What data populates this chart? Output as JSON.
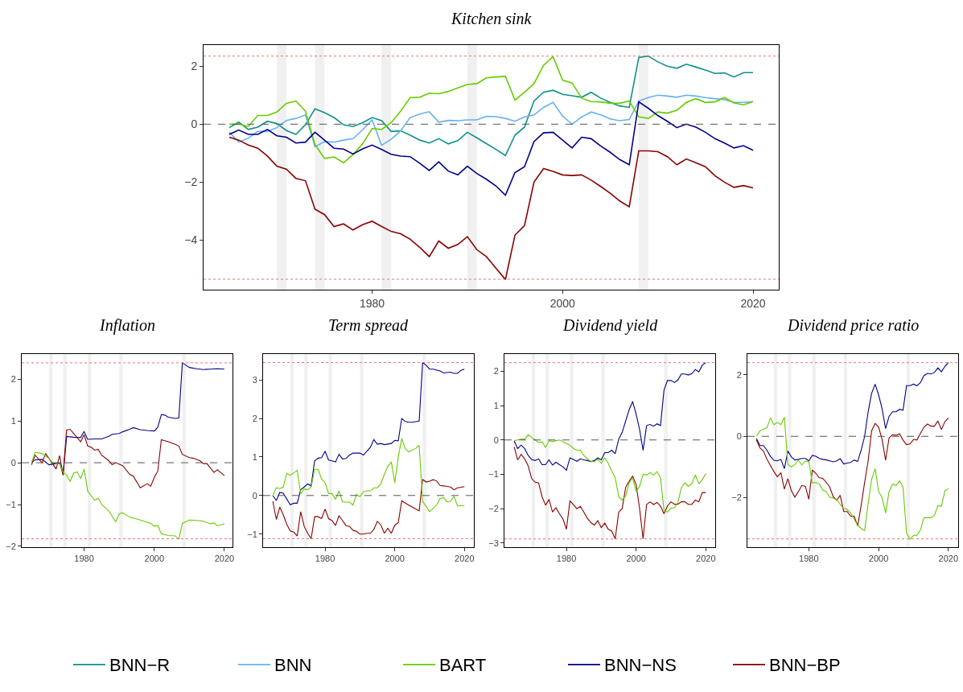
{
  "chart_data": [
    {
      "type": "line",
      "title": "Kitchen sink",
      "legend": "bottom",
      "grid": false,
      "line_style": "solid",
      "xlim": [
        1962.3,
        2022.7
      ],
      "ylim": [
        -5.71,
        2.73
      ],
      "xticks": [
        1980,
        2000,
        2020
      ],
      "yticks": [
        -4,
        -2,
        0,
        2
      ],
      "x": [
        1965,
        1966,
        1967,
        1968,
        1969,
        1970,
        1971,
        1972,
        1973,
        1974,
        1975,
        1976,
        1977,
        1978,
        1979,
        1980,
        1981,
        1982,
        1983,
        1984,
        1985,
        1986,
        1987,
        1988,
        1989,
        1990,
        1991,
        1992,
        1993,
        1994,
        1995,
        1996,
        1997,
        1998,
        1999,
        2000,
        2001,
        2002,
        2003,
        2004,
        2005,
        2006,
        2007,
        2008,
        2009,
        2010,
        2011,
        2012,
        2013,
        2014,
        2015,
        2016,
        2017,
        2018,
        2019,
        2020
      ],
      "series": [
        {
          "name": "BNN−R",
          "color": "#0e918c",
          "values": [
            -0.12,
            0.07,
            -0.18,
            -0.1,
            0.1,
            0.02,
            -0.22,
            -0.35,
            -0.02,
            0.53,
            0.4,
            0.23,
            -0.02,
            -0.08,
            0.05,
            0.23,
            0.12,
            -0.25,
            -0.23,
            -0.38,
            -0.55,
            -0.65,
            -0.5,
            -0.68,
            -0.57,
            -0.28,
            -0.47,
            -0.67,
            -0.87,
            -1.08,
            -0.38,
            -0.1,
            0.8,
            1.1,
            1.17,
            1.03,
            0.98,
            0.93,
            1.1,
            0.9,
            0.75,
            0.63,
            0.58,
            2.3,
            2.35,
            2.15,
            2.0,
            1.93,
            2.07,
            1.97,
            1.87,
            1.75,
            1.77,
            1.63,
            1.78,
            1.78
          ]
        },
        {
          "name": "BNN",
          "color": "#65b2ee",
          "values": [
            -0.28,
            -0.62,
            -0.48,
            -0.25,
            -0.25,
            -0.12,
            0.13,
            0.2,
            0.32,
            -0.78,
            -0.6,
            -0.62,
            -0.55,
            -0.5,
            -0.2,
            0.15,
            -0.73,
            -0.52,
            -0.23,
            0.23,
            0.35,
            0.43,
            0.07,
            0.13,
            0.12,
            0.15,
            0.15,
            0.27,
            0.26,
            0.2,
            0.1,
            0.25,
            0.32,
            0.58,
            0.75,
            0.28,
            0.0,
            0.25,
            0.42,
            0.32,
            0.18,
            0.12,
            0.16,
            0.8,
            0.92,
            1.0,
            0.97,
            0.93,
            1.0,
            0.97,
            0.92,
            0.88,
            0.85,
            0.75,
            0.75,
            0.78
          ]
        },
        {
          "name": "BART",
          "color": "#66cc00",
          "values": [
            0.0,
            0.0,
            -0.08,
            0.3,
            0.3,
            0.42,
            0.72,
            0.8,
            0.45,
            -0.7,
            -1.18,
            -1.13,
            -1.33,
            -1.05,
            -0.68,
            -0.15,
            -0.18,
            0.05,
            0.45,
            0.92,
            0.93,
            1.07,
            1.05,
            1.13,
            1.25,
            1.37,
            1.4,
            1.6,
            1.63,
            1.65,
            0.83,
            1.1,
            1.4,
            2.03,
            2.33,
            1.52,
            1.42,
            0.9,
            0.78,
            0.77,
            0.72,
            0.72,
            0.8,
            0.25,
            0.2,
            0.42,
            0.38,
            0.48,
            0.75,
            0.88,
            0.75,
            0.77,
            0.92,
            0.73,
            0.67,
            0.78
          ]
        },
        {
          "name": "BNN−NS",
          "color": "#00008b",
          "values": [
            -0.35,
            -0.2,
            -0.35,
            -0.35,
            -0.18,
            -0.4,
            -0.45,
            -0.65,
            -0.62,
            -0.28,
            -0.55,
            -0.83,
            -0.86,
            -1.03,
            -0.85,
            -0.72,
            -0.87,
            -1.04,
            -1.1,
            -1.12,
            -1.35,
            -1.6,
            -1.3,
            -1.62,
            -1.75,
            -1.45,
            -1.7,
            -1.9,
            -2.13,
            -2.45,
            -1.67,
            -1.47,
            -0.6,
            -0.3,
            -0.28,
            -0.55,
            -0.82,
            -0.45,
            -0.5,
            -0.75,
            -0.97,
            -1.22,
            -1.4,
            0.77,
            0.55,
            0.3,
            0.1,
            -0.12,
            0.0,
            -0.1,
            -0.28,
            -0.5,
            -0.65,
            -0.82,
            -0.74,
            -0.9
          ]
        },
        {
          "name": "BNN−BP",
          "color": "#8b0000",
          "values": [
            -0.45,
            -0.55,
            -0.72,
            -0.83,
            -1.1,
            -1.45,
            -1.55,
            -1.87,
            -1.95,
            -2.93,
            -3.12,
            -3.53,
            -3.44,
            -3.65,
            -3.47,
            -3.35,
            -3.53,
            -3.7,
            -3.78,
            -3.97,
            -4.25,
            -4.57,
            -4.03,
            -4.28,
            -4.15,
            -3.88,
            -4.33,
            -4.57,
            -4.97,
            -5.36,
            -3.83,
            -3.5,
            -2.0,
            -1.53,
            -1.63,
            -1.75,
            -1.77,
            -1.75,
            -1.93,
            -2.15,
            -2.38,
            -2.65,
            -2.85,
            -0.92,
            -0.92,
            -0.95,
            -1.12,
            -1.4,
            -1.2,
            -1.33,
            -1.47,
            -1.78,
            -2.0,
            -2.18,
            -2.12,
            -2.2
          ]
        }
      ],
      "ref_lines": [
        {
          "axis": "y",
          "value": 0,
          "color": "#555555",
          "line_style": "dashed"
        },
        {
          "axis": "y",
          "value": 2.35,
          "color": "#f07070",
          "line_style": "dotted"
        },
        {
          "axis": "y",
          "value": -5.35,
          "color": "#f07070",
          "line_style": "dotted"
        }
      ],
      "bands": [
        {
          "axis": "x",
          "from": 1970,
          "to": 1971,
          "color": "#f0f0f0"
        },
        {
          "axis": "x",
          "from": 1974,
          "to": 1975,
          "color": "#f0f0f0"
        },
        {
          "axis": "x",
          "from": 1981,
          "to": 1982,
          "color": "#f0f0f0"
        },
        {
          "axis": "x",
          "from": 1990,
          "to": 1991,
          "color": "#f0f0f0"
        },
        {
          "axis": "x",
          "from": 2008,
          "to": 2009,
          "color": "#f0f0f0"
        }
      ]
    },
    {
      "type": "line",
      "title": "Inflation",
      "grid": false,
      "line_style": "solid",
      "xlim": [
        1962.2,
        2022.3
      ],
      "ylim": [
        -2.02,
        2.6
      ],
      "xticks": [
        1980,
        2000,
        2020
      ],
      "yticks": [
        -2,
        -1,
        0,
        1,
        2
      ],
      "series": [
        {
          "name": "BNN−NS",
          "color": "#00008b",
          "x": [
            1965,
            1966,
            1968,
            1970,
            1972,
            1973,
            1974,
            1975,
            1977,
            1979,
            1980,
            1981,
            1983,
            1985,
            1987,
            1988,
            1990,
            1991,
            1993,
            1994,
            1996,
            1998,
            2000,
            2001,
            2002,
            2003,
            2004,
            2006,
            2007,
            2008,
            2010,
            2012,
            2014,
            2016,
            2018,
            2020
          ],
          "values": [
            0.0,
            0.07,
            0.08,
            -0.05,
            -0.02,
            0.0,
            -0.28,
            0.63,
            0.61,
            0.6,
            0.75,
            0.56,
            0.57,
            0.57,
            0.63,
            0.68,
            0.7,
            0.74,
            0.8,
            0.84,
            0.79,
            0.77,
            0.76,
            0.85,
            1.15,
            1.14,
            1.09,
            1.06,
            1.07,
            2.39,
            2.28,
            2.25,
            2.23,
            2.24,
            2.25,
            2.24
          ]
        },
        {
          "name": "BNN−BP",
          "color": "#8b0000",
          "x": [
            1965,
            1966,
            1968,
            1969,
            1970,
            1972,
            1973,
            1974,
            1975,
            1976,
            1977,
            1979,
            1980,
            1981,
            1982,
            1983,
            1984,
            1985,
            1987,
            1988,
            1989,
            1991,
            1993,
            1994,
            1996,
            1998,
            1999,
            2000,
            2001,
            2002,
            2004,
            2006,
            2007,
            2008,
            2010,
            2011,
            2013,
            2014,
            2015,
            2017,
            2018,
            2020
          ],
          "values": [
            -0.05,
            0.18,
            0.0,
            0.22,
            0.1,
            -0.15,
            0.17,
            -0.3,
            0.78,
            0.8,
            0.7,
            0.5,
            0.67,
            0.4,
            0.37,
            0.3,
            0.32,
            0.18,
            0.05,
            -0.05,
            0.0,
            -0.07,
            -0.28,
            -0.32,
            -0.6,
            -0.5,
            -0.56,
            -0.35,
            -0.2,
            0.55,
            0.5,
            0.44,
            0.4,
            0.2,
            0.12,
            0.11,
            0.05,
            -0.02,
            -0.02,
            -0.23,
            -0.17,
            -0.31
          ]
        },
        {
          "name": "BART",
          "color": "#66cc00",
          "x": [
            1965,
            1966,
            1968,
            1970,
            1971,
            1973,
            1974,
            1975,
            1976,
            1977,
            1978,
            1979,
            1980,
            1981,
            1983,
            1984,
            1985,
            1987,
            1989,
            1990,
            1991,
            1993,
            1996,
            1999,
            2000,
            2001,
            2002,
            2004,
            2006,
            2007,
            2008,
            2010,
            2012,
            2014,
            2016,
            2017,
            2018,
            2020
          ],
          "values": [
            0.0,
            0.25,
            0.22,
            0.1,
            0.0,
            -0.03,
            -0.23,
            -0.3,
            -0.45,
            -0.25,
            -0.22,
            -0.38,
            -0.15,
            -0.68,
            -0.9,
            -0.85,
            -1.0,
            -1.15,
            -1.42,
            -1.22,
            -1.2,
            -1.3,
            -1.37,
            -1.45,
            -1.52,
            -1.5,
            -1.7,
            -1.74,
            -1.75,
            -1.83,
            -1.45,
            -1.37,
            -1.38,
            -1.4,
            -1.46,
            -1.44,
            -1.51,
            -1.46
          ]
        }
      ],
      "ref_lines": [
        {
          "axis": "y",
          "value": 0,
          "color": "#555555",
          "line_style": "dashed"
        },
        {
          "axis": "y",
          "value": 2.39,
          "color": "#f07070",
          "line_style": "dotted"
        },
        {
          "axis": "y",
          "value": -1.82,
          "color": "#f07070",
          "line_style": "dotted"
        }
      ],
      "bands": [
        {
          "axis": "x",
          "from": 1970,
          "to": 1971,
          "color": "#f0f0f0"
        },
        {
          "axis": "x",
          "from": 1974,
          "to": 1975,
          "color": "#f0f0f0"
        },
        {
          "axis": "x",
          "from": 1981,
          "to": 1982,
          "color": "#f0f0f0"
        },
        {
          "axis": "x",
          "from": 1990,
          "to": 1991,
          "color": "#f0f0f0"
        },
        {
          "axis": "x",
          "from": 2008,
          "to": 2009,
          "color": "#f0f0f0"
        }
      ]
    },
    {
      "type": "line",
      "title": "Term spread",
      "grid": false,
      "line_style": "solid",
      "xlim": [
        1962.2,
        2022.7
      ],
      "ylim": [
        -1.34,
        3.67
      ],
      "xticks": [
        1980,
        2000,
        2020
      ],
      "yticks": [
        -1,
        0,
        1,
        2,
        3
      ],
      "series": [
        {
          "name": "BNN−NS",
          "color": "#00008b",
          "x": [
            1965,
            1966,
            1967,
            1968,
            1970,
            1971,
            1972,
            1973,
            1974,
            1975,
            1976,
            1977,
            1978,
            1979,
            1980,
            1981,
            1982,
            1983,
            1984,
            1985,
            1986,
            1987,
            1988,
            1990,
            1991,
            1993,
            1994,
            1995,
            1996,
            1997,
            1999,
            2000,
            2001,
            2002,
            2003,
            2004,
            2005,
            2007,
            2008,
            2009,
            2010,
            2011,
            2013,
            2014,
            2016,
            2017,
            2018,
            2019,
            2020
          ],
          "values": [
            0.0,
            -0.13,
            0.08,
            0.06,
            -0.24,
            -0.2,
            -0.2,
            0.15,
            0.22,
            0.3,
            0.25,
            0.9,
            0.97,
            0.98,
            1.15,
            0.92,
            0.9,
            0.87,
            1.07,
            0.95,
            0.96,
            1.05,
            1.1,
            1.1,
            1.05,
            1.25,
            1.45,
            1.33,
            1.35,
            1.32,
            1.35,
            1.43,
            1.42,
            2.0,
            1.92,
            1.9,
            1.9,
            1.93,
            3.45,
            3.38,
            3.28,
            3.28,
            3.23,
            3.18,
            3.2,
            3.17,
            3.17,
            3.25,
            3.28
          ]
        },
        {
          "name": "BNN−BP",
          "color": "#8b0000",
          "x": [
            1965,
            1966,
            1967,
            1968,
            1969,
            1970,
            1971,
            1972,
            1973,
            1974,
            1975,
            1976,
            1977,
            1978,
            1979,
            1980,
            1981,
            1982,
            1983,
            1984,
            1985,
            1986,
            1987,
            1988,
            1989,
            1990,
            1991,
            1992,
            1993,
            1994,
            1995,
            1996,
            1997,
            1998,
            1999,
            2000,
            2001,
            2002,
            2004,
            2006,
            2007,
            2008,
            2009,
            2010,
            2011,
            2012,
            2013,
            2014,
            2016,
            2017,
            2018,
            2020
          ],
          "values": [
            -0.15,
            -0.62,
            -0.3,
            -0.5,
            -0.75,
            -0.92,
            -0.95,
            -1.05,
            -0.42,
            -0.8,
            -0.98,
            -1.12,
            -0.55,
            -0.55,
            -0.6,
            -0.35,
            -0.6,
            -0.65,
            -0.78,
            -0.52,
            -0.65,
            -0.78,
            -0.8,
            -0.9,
            -0.93,
            -1.0,
            -1.0,
            -0.98,
            -0.98,
            -0.88,
            -0.67,
            -0.76,
            -0.98,
            -0.85,
            -0.98,
            -0.77,
            -0.7,
            -0.14,
            -0.25,
            -0.35,
            -0.4,
            0.42,
            0.35,
            0.37,
            0.41,
            0.38,
            0.26,
            0.25,
            0.22,
            0.15,
            0.2,
            0.23
          ]
        },
        {
          "name": "BART",
          "color": "#66cc00",
          "x": [
            1965,
            1966,
            1967,
            1968,
            1969,
            1970,
            1972,
            1973,
            1974,
            1975,
            1976,
            1977,
            1978,
            1979,
            1980,
            1981,
            1982,
            1983,
            1984,
            1985,
            1986,
            1987,
            1988,
            1989,
            1990,
            1991,
            1992,
            1993,
            1994,
            1995,
            1996,
            1997,
            1998,
            1999,
            2000,
            2001,
            2002,
            2003,
            2004,
            2006,
            2007,
            2008,
            2010,
            2012,
            2013,
            2014,
            2015,
            2016,
            2017,
            2018,
            2020
          ],
          "values": [
            0.0,
            0.2,
            0.18,
            0.22,
            0.58,
            0.52,
            0.65,
            0.05,
            0.17,
            0.15,
            0.22,
            0.68,
            0.68,
            0.43,
            0.33,
            0.05,
            0.05,
            -0.1,
            0.12,
            -0.17,
            -0.17,
            -0.17,
            -0.25,
            0.03,
            -0.03,
            0.1,
            0.12,
            0.12,
            0.2,
            0.2,
            0.3,
            0.55,
            0.75,
            0.87,
            0.33,
            1.0,
            1.48,
            1.22,
            1.13,
            1.22,
            1.3,
            -0.15,
            -0.42,
            -0.25,
            -0.08,
            -0.05,
            -0.17,
            -0.15,
            -0.02,
            -0.27,
            -0.26
          ]
        }
      ],
      "ref_lines": [
        {
          "axis": "y",
          "value": 0,
          "color": "#555555",
          "line_style": "dashed"
        },
        {
          "axis": "y",
          "value": 3.45,
          "color": "#f07070",
          "line_style": "dotted"
        },
        {
          "axis": "y",
          "value": -1.12,
          "color": "#f07070",
          "line_style": "dotted"
        }
      ],
      "bands": [
        {
          "axis": "x",
          "from": 1970,
          "to": 1971,
          "color": "#f0f0f0"
        },
        {
          "axis": "x",
          "from": 1974,
          "to": 1975,
          "color": "#f0f0f0"
        },
        {
          "axis": "x",
          "from": 1981,
          "to": 1982,
          "color": "#f0f0f0"
        },
        {
          "axis": "x",
          "from": 1990,
          "to": 1991,
          "color": "#f0f0f0"
        },
        {
          "axis": "x",
          "from": 2008,
          "to": 2009,
          "color": "#f0f0f0"
        }
      ]
    },
    {
      "type": "line",
      "title": "Dividend yield",
      "grid": false,
      "line_style": "solid",
      "xlim": [
        1962.2,
        2022.7
      ],
      "ylim": [
        -3.12,
        2.5
      ],
      "xticks": [
        1980,
        2000,
        2020
      ],
      "yticks": [
        -3,
        -2,
        -1,
        0,
        1,
        2
      ],
      "x": [
        1965,
        1966,
        1967,
        1968,
        1969,
        1970,
        1971,
        1972,
        1973,
        1974,
        1975,
        1976,
        1977,
        1978,
        1979,
        1980,
        1981,
        1982,
        1983,
        1984,
        1985,
        1986,
        1987,
        1988,
        1989,
        1990,
        1991,
        1992,
        1993,
        1994,
        1995,
        1996,
        1997,
        1998,
        1999,
        2000,
        2001,
        2002,
        2003,
        2004,
        2005,
        2006,
        2007,
        2008,
        2009,
        2010,
        2011,
        2012,
        2013,
        2014,
        2015,
        2016,
        2017,
        2018,
        2019,
        2020
      ],
      "series": [
        {
          "name": "BNN−NS",
          "color": "#00008b",
          "values": [
            -0.03,
            -0.25,
            -0.15,
            -0.25,
            -0.45,
            -0.57,
            -0.6,
            -0.55,
            -0.72,
            -0.72,
            -0.58,
            -0.73,
            -0.65,
            -0.72,
            -0.78,
            -0.88,
            -0.52,
            -0.57,
            -0.62,
            -0.55,
            -0.58,
            -0.6,
            -0.63,
            -0.6,
            -0.52,
            -0.58,
            -0.37,
            -0.37,
            -0.3,
            -0.4,
            0.02,
            0.22,
            0.55,
            0.88,
            1.12,
            0.75,
            0.3,
            -0.3,
            0.42,
            0.45,
            0.4,
            0.47,
            0.42,
            1.45,
            1.73,
            1.73,
            1.67,
            1.75,
            1.92,
            1.92,
            1.89,
            1.93,
            2.05,
            1.98,
            2.18,
            2.25
          ]
        },
        {
          "name": "BNN−BP",
          "color": "#8b0000",
          "values": [
            -0.2,
            -0.58,
            -0.42,
            -0.55,
            -0.75,
            -1.12,
            -1.23,
            -1.25,
            -1.65,
            -1.9,
            -1.73,
            -2.1,
            -1.97,
            -2.15,
            -2.3,
            -2.6,
            -1.77,
            -1.88,
            -2.0,
            -1.93,
            -2.1,
            -2.28,
            -2.4,
            -2.48,
            -2.35,
            -2.55,
            -2.42,
            -2.6,
            -2.65,
            -2.88,
            -2.1,
            -2.0,
            -1.38,
            -1.2,
            -1.05,
            -1.3,
            -2.0,
            -2.88,
            -1.88,
            -1.8,
            -1.88,
            -1.82,
            -1.92,
            -2.15,
            -1.92,
            -1.8,
            -1.87,
            -1.87,
            -1.8,
            -1.8,
            -1.88,
            -1.87,
            -1.75,
            -1.8,
            -1.53,
            -1.53
          ]
        },
        {
          "name": "BART",
          "color": "#66cc00",
          "values": [
            -0.02,
            0.0,
            0.03,
            0.02,
            0.15,
            0.08,
            0.0,
            -0.07,
            -0.05,
            -0.22,
            -0.02,
            -0.05,
            -0.02,
            0.0,
            -0.05,
            -0.1,
            -0.15,
            -0.25,
            -0.3,
            -0.3,
            -0.45,
            -0.55,
            -0.62,
            -0.63,
            -0.55,
            -0.68,
            -0.52,
            -0.68,
            -0.9,
            -1.1,
            -1.65,
            -1.75,
            -1.63,
            -1.25,
            -1.1,
            -1.5,
            -1.35,
            -1.0,
            -1.02,
            -0.95,
            -1.02,
            -0.92,
            -1.1,
            -2.05,
            -2.1,
            -1.98,
            -1.98,
            -1.82,
            -1.38,
            -1.25,
            -1.35,
            -1.27,
            -1.02,
            -1.28,
            -1.15,
            -0.98
          ]
        }
      ],
      "ref_lines": [
        {
          "axis": "y",
          "value": 0,
          "color": "#555555",
          "line_style": "dashed"
        },
        {
          "axis": "y",
          "value": 2.25,
          "color": "#f07070",
          "line_style": "dotted"
        },
        {
          "axis": "y",
          "value": -2.88,
          "color": "#f07070",
          "line_style": "dotted"
        }
      ],
      "bands": [
        {
          "axis": "x",
          "from": 1970,
          "to": 1971,
          "color": "#f0f0f0"
        },
        {
          "axis": "x",
          "from": 1974,
          "to": 1975,
          "color": "#f0f0f0"
        },
        {
          "axis": "x",
          "from": 1981,
          "to": 1982,
          "color": "#f0f0f0"
        },
        {
          "axis": "x",
          "from": 1990,
          "to": 1991,
          "color": "#f0f0f0"
        },
        {
          "axis": "x",
          "from": 2008,
          "to": 2009,
          "color": "#f0f0f0"
        }
      ]
    },
    {
      "type": "line",
      "title": "Dividend price ratio",
      "grid": false,
      "line_style": "solid",
      "xlim": [
        1962.4,
        2022.8
      ],
      "ylim": [
        -3.61,
        2.68
      ],
      "xticks": [
        1980,
        2000,
        2020
      ],
      "yticks": [
        -2,
        0,
        2
      ],
      "x": [
        1965,
        1966,
        1967,
        1968,
        1969,
        1970,
        1971,
        1972,
        1973,
        1974,
        1975,
        1976,
        1977,
        1978,
        1979,
        1980,
        1981,
        1982,
        1983,
        1984,
        1985,
        1986,
        1987,
        1988,
        1989,
        1990,
        1991,
        1992,
        1993,
        1994,
        1995,
        1996,
        1997,
        1998,
        1999,
        2000,
        2001,
        2002,
        2003,
        2004,
        2005,
        2006,
        2007,
        2008,
        2009,
        2010,
        2011,
        2012,
        2013,
        2014,
        2015,
        2016,
        2017,
        2018,
        2019,
        2020
      ],
      "series": [
        {
          "name": "BNN−NS",
          "color": "#00008b",
          "values": [
            -0.07,
            -0.3,
            -0.3,
            -0.45,
            -0.65,
            -0.78,
            -0.8,
            -0.75,
            -1.05,
            -0.48,
            -0.67,
            -0.77,
            -0.75,
            -0.72,
            -0.72,
            -0.8,
            -0.62,
            -0.65,
            -0.72,
            -0.75,
            -0.77,
            -0.8,
            -0.83,
            -0.8,
            -0.73,
            -0.9,
            -0.87,
            -0.85,
            -0.77,
            -0.82,
            -0.45,
            0.0,
            0.8,
            1.4,
            1.7,
            1.35,
            0.9,
            0.25,
            0.65,
            0.8,
            0.8,
            0.88,
            0.85,
            1.65,
            1.65,
            1.7,
            1.65,
            1.75,
            1.98,
            2.05,
            2.03,
            2.08,
            2.23,
            2.1,
            2.28,
            2.4
          ]
        },
        {
          "name": "BNN−BP",
          "color": "#8b0000",
          "values": [
            -0.12,
            -0.38,
            -0.48,
            -0.75,
            -0.95,
            -1.15,
            -1.32,
            -1.18,
            -1.72,
            -1.38,
            -1.77,
            -1.98,
            -1.8,
            -1.6,
            -1.63,
            -2.05,
            -1.1,
            -1.2,
            -1.35,
            -1.37,
            -1.5,
            -1.65,
            -1.97,
            -2.08,
            -1.92,
            -2.45,
            -2.45,
            -2.6,
            -2.6,
            -2.92,
            -2.25,
            -1.5,
            -0.8,
            0.18,
            0.42,
            0.3,
            -0.1,
            -0.78,
            -0.05,
            0.05,
            0.03,
            0.08,
            -0.12,
            -0.27,
            -0.25,
            -0.1,
            -0.12,
            0.1,
            0.3,
            0.4,
            0.33,
            0.33,
            0.5,
            0.22,
            0.48,
            0.6
          ]
        },
        {
          "name": "BART",
          "color": "#66cc00",
          "values": [
            0.0,
            0.18,
            0.23,
            0.28,
            0.6,
            0.38,
            0.45,
            0.38,
            0.62,
            -0.92,
            -1.0,
            -0.92,
            -0.78,
            -0.93,
            -0.8,
            -0.83,
            -1.52,
            -1.5,
            -1.55,
            -1.75,
            -1.8,
            -1.98,
            -2.02,
            -2.05,
            -2.22,
            -2.35,
            -2.38,
            -2.5,
            -2.7,
            -2.9,
            -3.0,
            -3.07,
            -2.2,
            -1.4,
            -1.05,
            -1.8,
            -2.0,
            -2.5,
            -1.8,
            -1.55,
            -1.6,
            -1.45,
            -1.65,
            -3.15,
            -3.35,
            -3.23,
            -3.22,
            -3.05,
            -2.65,
            -2.65,
            -2.65,
            -2.58,
            -2.25,
            -2.28,
            -1.77,
            -1.7
          ]
        }
      ],
      "ref_lines": [
        {
          "axis": "y",
          "value": 0,
          "color": "#555555",
          "line_style": "dashed"
        },
        {
          "axis": "y",
          "value": 2.4,
          "color": "#f07070",
          "line_style": "dotted"
        },
        {
          "axis": "y",
          "value": -3.34,
          "color": "#f07070",
          "line_style": "dotted"
        }
      ],
      "bands": [
        {
          "axis": "x",
          "from": 1970,
          "to": 1971,
          "color": "#f0f0f0"
        },
        {
          "axis": "x",
          "from": 1974,
          "to": 1975,
          "color": "#f0f0f0"
        },
        {
          "axis": "x",
          "from": 1981,
          "to": 1982,
          "color": "#f0f0f0"
        },
        {
          "axis": "x",
          "from": 1990,
          "to": 1991,
          "color": "#f0f0f0"
        },
        {
          "axis": "x",
          "from": 2008,
          "to": 2009,
          "color": "#f0f0f0"
        }
      ]
    }
  ]
}
